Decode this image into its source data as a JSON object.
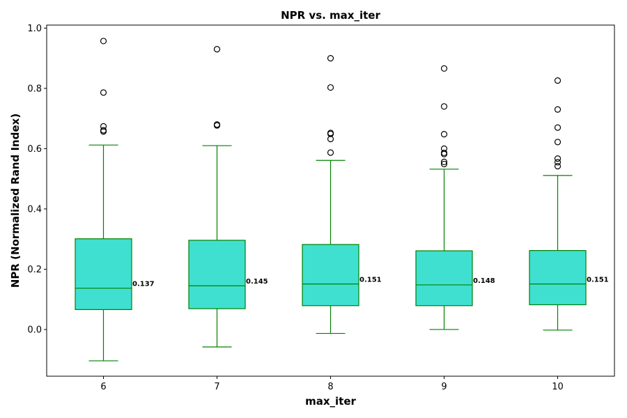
{
  "chart_data": {
    "type": "box",
    "title": "NPR vs. max_iter",
    "xlabel": "max_iter",
    "ylabel": "NPR (Normalized Rand Index)",
    "ylim": [
      -0.155,
      1.01
    ],
    "yticks": [
      0.0,
      0.2,
      0.4,
      0.6,
      0.8,
      1.0
    ],
    "ytick_labels": [
      "0.0",
      "0.2",
      "0.4",
      "0.6",
      "0.8",
      "1.0"
    ],
    "categories": [
      "6",
      "7",
      "8",
      "9",
      "10"
    ],
    "box_fill": "#40e0d0",
    "line_color": "#008000",
    "boxes": [
      {
        "whisker_low": -0.104,
        "q1": 0.066,
        "median": 0.137,
        "q3": 0.301,
        "whisker_high": 0.612,
        "median_label": "0.137",
        "outliers": [
          0.957,
          0.786,
          0.674,
          0.661,
          0.657
        ]
      },
      {
        "whisker_low": -0.058,
        "q1": 0.069,
        "median": 0.145,
        "q3": 0.296,
        "whisker_high": 0.61,
        "median_label": "0.145",
        "outliers": [
          0.93,
          0.68,
          0.677
        ]
      },
      {
        "whisker_low": -0.013,
        "q1": 0.079,
        "median": 0.151,
        "q3": 0.282,
        "whisker_high": 0.561,
        "median_label": "0.151",
        "outliers": [
          0.9,
          0.803,
          0.652,
          0.649,
          0.632,
          0.587
        ]
      },
      {
        "whisker_low": 0.0,
        "q1": 0.079,
        "median": 0.148,
        "q3": 0.261,
        "whisker_high": 0.532,
        "median_label": "0.148",
        "outliers": [
          0.866,
          0.74,
          0.648,
          0.6,
          0.586,
          0.582,
          0.556,
          0.549
        ]
      },
      {
        "whisker_low": -0.002,
        "q1": 0.082,
        "median": 0.151,
        "q3": 0.262,
        "whisker_high": 0.511,
        "median_label": "0.151",
        "outliers": [
          0.826,
          0.73,
          0.67,
          0.622,
          0.567,
          0.555,
          0.542
        ]
      }
    ]
  }
}
